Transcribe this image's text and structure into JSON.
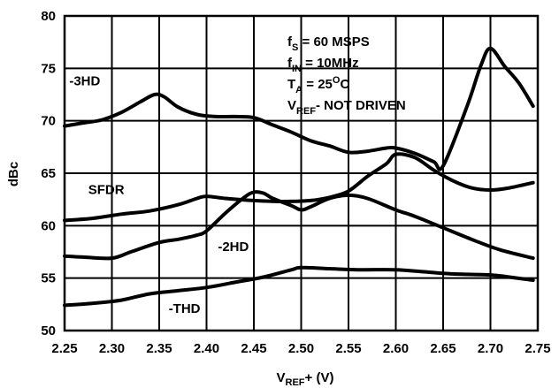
{
  "chart_data": {
    "type": "line",
    "xlabel": "V",
    "xlabel_sub": "REF",
    "xlabel_tail": "+ (V)",
    "ylabel": "dBc",
    "xlim": [
      2.25,
      2.75
    ],
    "ylim": [
      50,
      80
    ],
    "grid": true,
    "x_ticks": [
      2.25,
      2.3,
      2.35,
      2.4,
      2.45,
      2.5,
      2.55,
      2.6,
      2.65,
      2.7,
      2.75
    ],
    "x_tick_labels": [
      "2.25",
      "2.30",
      "2.35",
      "2.40",
      "2.45",
      "2.50",
      "2.55",
      "2.60",
      "2.65",
      "2.70",
      "2.75"
    ],
    "y_ticks": [
      50,
      55,
      60,
      65,
      70,
      75,
      80
    ],
    "y_tick_labels": [
      "50",
      "55",
      "60",
      "65",
      "70",
      "75",
      "80"
    ],
    "annotations": [
      {
        "main": "f",
        "sub": "S",
        "tail": " = 60 MSPS",
        "sup": ""
      },
      {
        "main": "f",
        "sub": "IN",
        "tail": " = 10MHz",
        "sup": ""
      },
      {
        "main": "T",
        "sub": "A",
        "tail": " = 25",
        "sup": "O",
        "tail2": "C"
      },
      {
        "main": "V",
        "sub": "REF",
        "tail": "- NOT DRIVEN",
        "sup": ""
      }
    ],
    "series": [
      {
        "name": "-3HD",
        "x": [
          2.25,
          2.27,
          2.29,
          2.31,
          2.33,
          2.345,
          2.355,
          2.37,
          2.39,
          2.41,
          2.43,
          2.45,
          2.47,
          2.49,
          2.51,
          2.53,
          2.55,
          2.57,
          2.59,
          2.6,
          2.62,
          2.64,
          2.65,
          2.675,
          2.69,
          2.7,
          2.715,
          2.73,
          2.745
        ],
        "y": [
          69.5,
          69.8,
          70.1,
          70.8,
          71.8,
          72.5,
          72.3,
          71.3,
          70.6,
          70.4,
          70.4,
          70.3,
          69.6,
          68.9,
          68.1,
          67.6,
          67.0,
          67.1,
          67.4,
          67.4,
          66.9,
          66.1,
          65.7,
          71.3,
          75.3,
          76.9,
          75.2,
          73.6,
          71.4
        ]
      },
      {
        "name": "SFDR",
        "x": [
          2.25,
          2.28,
          2.31,
          2.34,
          2.37,
          2.39,
          2.4,
          2.42,
          2.45,
          2.48,
          2.51,
          2.53,
          2.55,
          2.57,
          2.59,
          2.6,
          2.62,
          2.64,
          2.66,
          2.68,
          2.7,
          2.72,
          2.745
        ],
        "y": [
          60.5,
          60.7,
          61.1,
          61.4,
          62.0,
          62.6,
          62.8,
          62.6,
          62.4,
          62.3,
          62.4,
          62.7,
          63.3,
          64.7,
          65.9,
          66.8,
          66.5,
          65.3,
          64.3,
          63.6,
          63.4,
          63.6,
          64.1
        ]
      },
      {
        "name": "-2HD",
        "x": [
          2.25,
          2.27,
          2.3,
          2.32,
          2.35,
          2.37,
          2.39,
          2.4,
          2.42,
          2.44,
          2.45,
          2.46,
          2.47,
          2.49,
          2.5,
          2.51,
          2.53,
          2.55,
          2.57,
          2.6,
          2.62,
          2.65,
          2.68,
          2.71,
          2.745
        ],
        "y": [
          57.1,
          57.0,
          56.9,
          57.5,
          58.4,
          58.7,
          59.1,
          59.5,
          61.2,
          62.7,
          63.2,
          63.1,
          62.6,
          61.9,
          61.5,
          61.8,
          62.6,
          62.9,
          62.6,
          61.5,
          60.9,
          59.8,
          58.7,
          57.7,
          56.9
        ]
      },
      {
        "name": "-THD",
        "x": [
          2.25,
          2.28,
          2.31,
          2.34,
          2.37,
          2.4,
          2.43,
          2.46,
          2.49,
          2.5,
          2.53,
          2.56,
          2.6,
          2.63,
          2.66,
          2.7,
          2.72,
          2.745
        ],
        "y": [
          52.4,
          52.6,
          52.9,
          53.5,
          53.8,
          54.1,
          54.6,
          55.1,
          55.8,
          56.0,
          55.9,
          55.8,
          55.8,
          55.6,
          55.4,
          55.3,
          55.1,
          54.8
        ]
      }
    ]
  }
}
